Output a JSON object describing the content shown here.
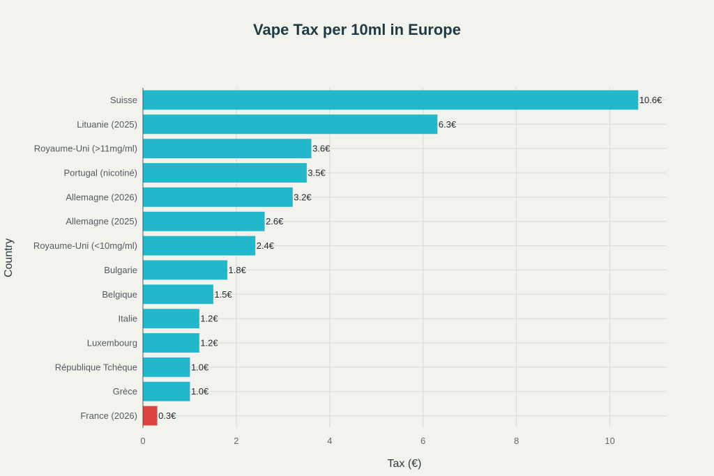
{
  "chart_data": {
    "type": "bar",
    "orientation": "horizontal",
    "title": "Vape Tax per 10ml in Europe",
    "xlabel": "Tax (€)",
    "ylabel": "Country",
    "xlim": [
      0,
      11.2
    ],
    "xticks": [
      0,
      2,
      4,
      6,
      8,
      10
    ],
    "grid": true,
    "categories": [
      "Suisse",
      "Lituanie (2025)",
      "Royaume-Uni (>11mg/ml)",
      "Portugal (nicotiné)",
      "Allemagne (2026)",
      "Allemagne (2025)",
      "Royaume-Uni (<10mg/ml)",
      "Bulgarie",
      "Belgique",
      "Italie",
      "Luxembourg",
      "République Tchèque",
      "Grèce",
      "France (2026)"
    ],
    "values": [
      10.6,
      6.3,
      3.6,
      3.5,
      3.2,
      2.6,
      2.4,
      1.8,
      1.5,
      1.2,
      1.2,
      1.0,
      1.0,
      0.3
    ],
    "data_labels": [
      "10.6€",
      "6.3€",
      "3.6€",
      "3.5€",
      "3.2€",
      "2.6€",
      "2.4€",
      "1.8€",
      "1.5€",
      "1.2€",
      "1.2€",
      "1.0€",
      "1.0€",
      "0.3€"
    ],
    "colors": {
      "default": "#21b8cc",
      "highlight": "#dc4444",
      "highlight_category": "France (2026)",
      "background": "#f3f3ee"
    }
  }
}
